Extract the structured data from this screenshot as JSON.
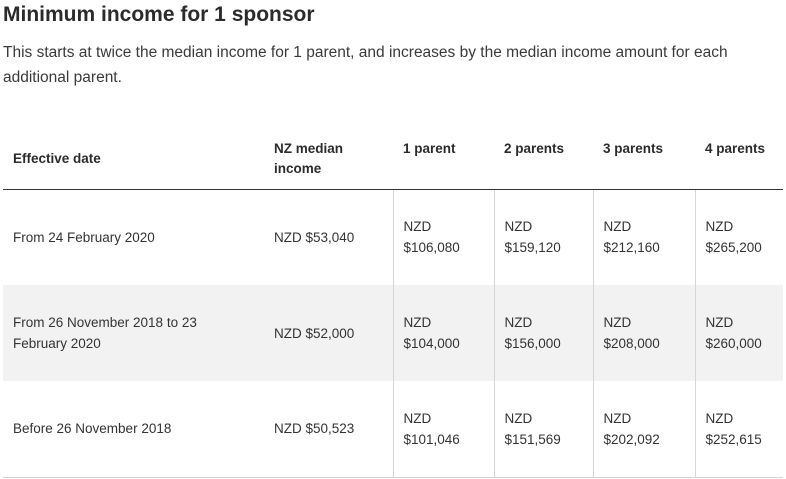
{
  "page": {
    "title": "Minimum income for 1 sponsor",
    "intro": "This starts at twice the median income for 1 parent, and increases by the median income amount for each additional parent."
  },
  "table": {
    "headers": [
      "Effective date",
      "NZ median income",
      "1 parent",
      "2 parents",
      "3 parents",
      "4 parents"
    ],
    "rows": [
      {
        "date": "From 24 February 2020",
        "median": "NZD $53,040",
        "p1_currency": "NZD",
        "p1_amount": "$106,080",
        "p2_currency": "NZD",
        "p2_amount": "$159,120",
        "p3_currency": "NZD",
        "p3_amount": "$212,160",
        "p4_currency": "NZD",
        "p4_amount": "$265,200"
      },
      {
        "date": "From 26 November 2018 to 23 February 2020",
        "median": "NZD $52,000",
        "p1_currency": "NZD",
        "p1_amount": "$104,000",
        "p2_currency": "NZD",
        "p2_amount": "$156,000",
        "p3_currency": "NZD",
        "p3_amount": "$208,000",
        "p4_currency": "NZD",
        "p4_amount": "$260,000"
      },
      {
        "date": "Before 26 November 2018",
        "median": "NZD $50,523",
        "p1_currency": "NZD",
        "p1_amount": "$101,046",
        "p2_currency": "NZD",
        "p2_amount": "$151,569",
        "p3_currency": "NZD",
        "p3_amount": "$202,092",
        "p4_currency": "NZD",
        "p4_amount": "$252,615"
      }
    ]
  }
}
